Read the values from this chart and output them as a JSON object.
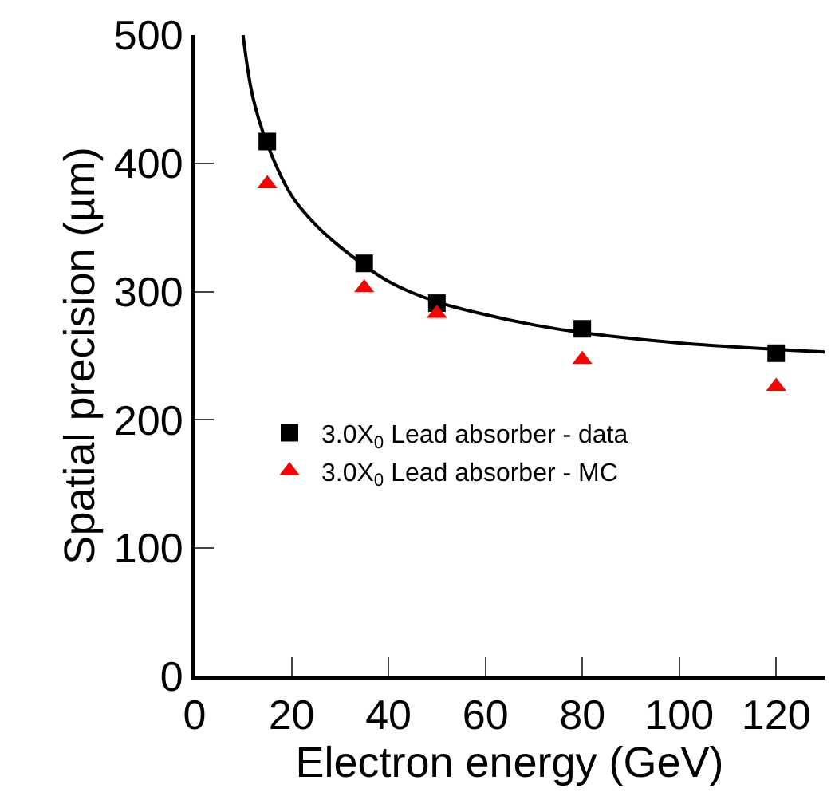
{
  "chart_data": {
    "type": "scatter",
    "xlabel": "Electron energy (GeV)",
    "ylabel": "Spatial precision (µm)",
    "x": [
      15,
      35,
      50,
      80,
      120
    ],
    "series": [
      {
        "name": "3.0X$_{0}$ Lead absorber - data",
        "color": "#000000",
        "marker": "square",
        "values": [
          417,
          322,
          291,
          271,
          252
        ]
      },
      {
        "name": "3.0X$_{0}$ Lead absorber - MC",
        "color": "#ff0000",
        "marker": "triangle",
        "values": [
          384,
          303,
          283,
          247,
          226
        ]
      },
      {
        "type": "line",
        "color": "#000000",
        "x": [
          10,
          12,
          15,
          20,
          25,
          30,
          40,
          50,
          60,
          70,
          80,
          100,
          120,
          130
        ],
        "values": [
          500,
          452,
          415,
          375,
          352,
          335,
          308,
          292,
          282,
          274,
          268,
          260,
          255,
          253
        ]
      }
    ],
    "xlim": [
      0,
      130
    ],
    "xticks": [
      0,
      20,
      40,
      60,
      80,
      100,
      120
    ],
    "ylim": [
      0,
      500
    ],
    "yticks": [
      0,
      100,
      200,
      300,
      400,
      500
    ],
    "grid": false,
    "legend": "bottom left"
  }
}
